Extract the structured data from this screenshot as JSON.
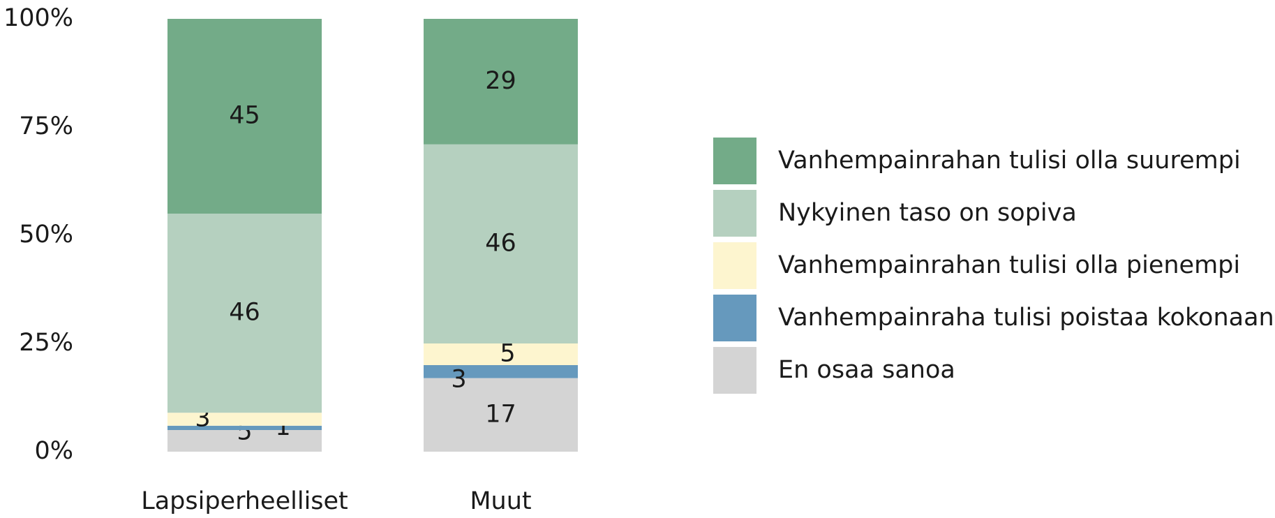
{
  "chart_data": {
    "type": "stacked_bar",
    "categories": [
      "Lapsiperheelliset",
      "Muut"
    ],
    "series": [
      {
        "name": "En osaa sanoa",
        "color": "#d4d4d4",
        "values": [
          5,
          17
        ]
      },
      {
        "name": "Vanhempainraha tulisi poistaa kokonaan",
        "color": "#6699bd",
        "values": [
          1,
          3
        ]
      },
      {
        "name": "Vanhempainrahan tulisi olla pienempi",
        "color": "#fdf5cf",
        "values": [
          3,
          5
        ]
      },
      {
        "name": "Nykyinen taso on sopiva",
        "color": "#b5d0bf",
        "values": [
          46,
          46
        ]
      },
      {
        "name": "Vanhempainrahan tulisi olla suurempi",
        "color": "#73ab88",
        "values": [
          45,
          29
        ]
      }
    ],
    "ylim": [
      0,
      100
    ],
    "yticks": [
      {
        "value": 0,
        "label": "0%"
      },
      {
        "value": 25,
        "label": "25%"
      },
      {
        "value": 50,
        "label": "50%"
      },
      {
        "value": 75,
        "label": "75%"
      },
      {
        "value": 100,
        "label": "100%"
      }
    ],
    "legend": "right"
  }
}
